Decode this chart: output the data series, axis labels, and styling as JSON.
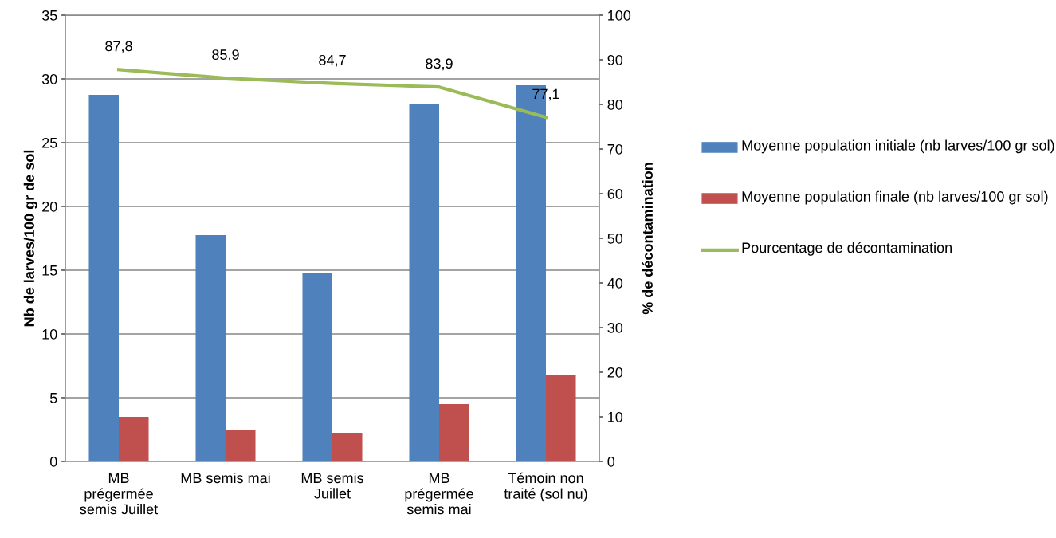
{
  "chart_data": {
    "type": "bar",
    "ylabel": "Nb de larves/100 gr de sol",
    "y2label": "% de décontamination",
    "categories": [
      "MB\nprégermée\nsemis Juillet",
      "MB semis mai",
      "MB semis\nJuillet",
      "MB\nprégermée\nsemis mai",
      "Témoin non\ntraité (sol nu)"
    ],
    "series": [
      {
        "name": "Moyenne population initiale (nb larves/100 gr sol)",
        "color": "#4f81bd",
        "values": [
          28.75,
          17.75,
          14.75,
          28,
          29.5
        ]
      },
      {
        "name": "Moyenne population finale (nb larves/100 gr sol)",
        "color": "#c0504d",
        "values": [
          3.5,
          2.5,
          2.25,
          4.5,
          6.75
        ]
      },
      {
        "name": "Pourcentage de décontamination",
        "type": "line",
        "axis": "y2",
        "color": "#9bbb59",
        "values": [
          87.8,
          85.9,
          84.7,
          83.9,
          77.1
        ],
        "value_labels": [
          "87,8",
          "85,9",
          "84,7",
          "83,9",
          "77,1"
        ],
        "marker": "none"
      }
    ],
    "ylim": [
      0,
      35
    ],
    "yticks": [
      0,
      5,
      10,
      15,
      20,
      25,
      30,
      35
    ],
    "y2lim": [
      0,
      100
    ],
    "y2ticks": [
      0,
      10,
      20,
      30,
      40,
      50,
      60,
      70,
      80,
      90,
      100
    ],
    "grid": "y",
    "legend": "right"
  }
}
